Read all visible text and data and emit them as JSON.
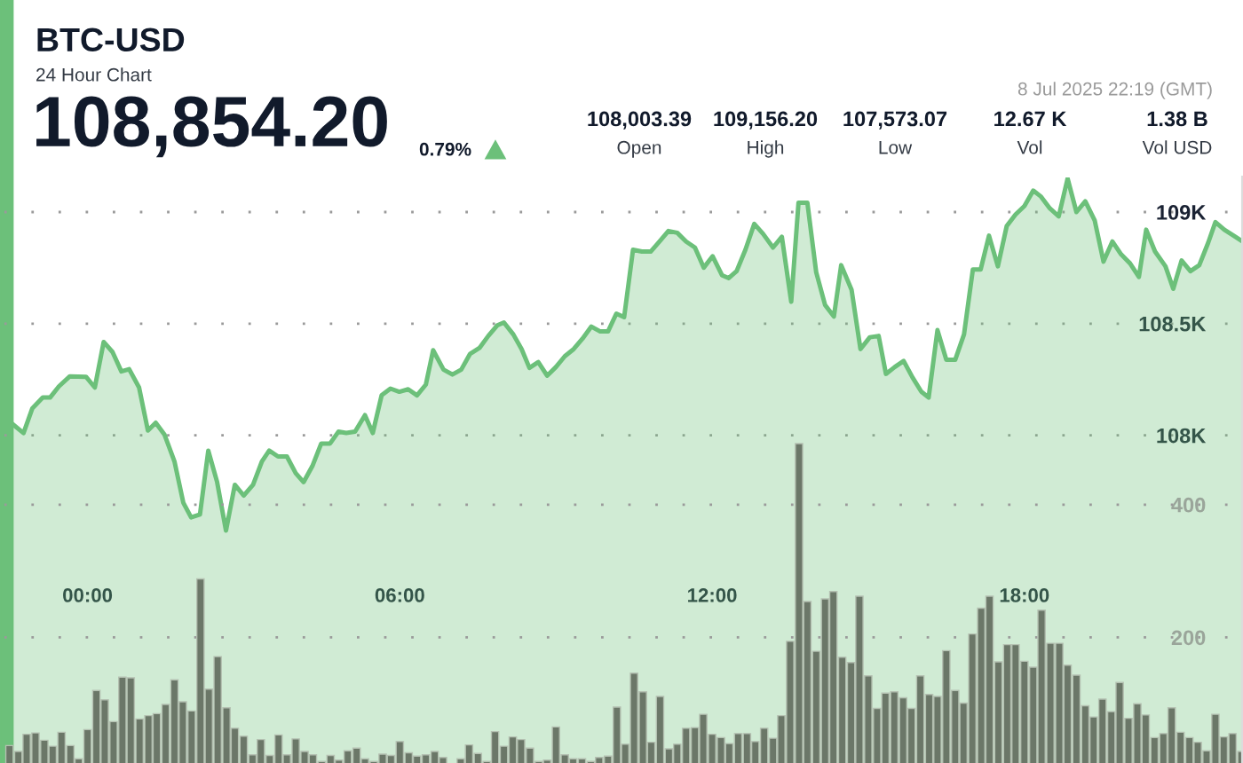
{
  "chart_data": {
    "type": "area",
    "title": "BTC-USD",
    "subtitle": "24 Hour Chart",
    "annotations": [
      "108,854.20",
      "0.79%",
      "108,003.39",
      "Open",
      "109,156.20",
      "High",
      "107,573.07",
      "Low",
      "12.67 K",
      "Vol",
      "1.38 B",
      "Vol USD",
      "8 Jul 2025 22:19 (GMT)"
    ],
    "xlim": [
      -1.6,
      22.2
    ],
    "xticks": [
      {
        "value": 0,
        "label": "00:00"
      },
      {
        "value": 6,
        "label": "06:00"
      },
      {
        "value": 12,
        "label": "12:00"
      },
      {
        "value": 18,
        "label": "18:00"
      }
    ],
    "ylim": [
      106500,
      109155
    ],
    "yticks": [
      {
        "value": 108000,
        "label": "108K"
      },
      {
        "value": 108500,
        "label": "108.5K"
      },
      {
        "value": 109000,
        "label": "109K"
      }
    ],
    "y2lim": [
      0,
      893
    ],
    "y2ticks": [
      200,
      400
    ],
    "grid": "y",
    "marker": "none",
    "series": [
      {
        "color": "#6cc07a",
        "x": [
          -1.43,
          -1.23,
          -1.06,
          -0.86,
          -0.72,
          -0.55,
          -0.34,
          -0.03,
          0.14,
          0.31,
          0.48,
          0.65,
          0.8,
          0.99,
          1.16,
          1.31,
          1.48,
          1.67,
          1.84,
          1.99,
          2.16,
          2.32,
          2.49,
          2.66,
          2.83,
          3.0,
          3.18,
          3.35,
          3.49,
          3.66,
          3.83,
          4.0,
          4.15,
          4.32,
          4.49,
          4.66,
          4.82,
          4.97,
          5.14,
          5.33,
          5.48,
          5.65,
          5.82,
          5.99,
          6.16,
          6.33,
          6.5,
          6.64,
          6.84,
          7.01,
          7.18,
          7.35,
          7.53,
          7.7,
          7.87,
          8.0,
          8.18,
          8.34,
          8.49,
          8.66,
          8.83,
          9.0,
          9.17,
          9.34,
          9.51,
          9.68,
          9.85,
          10.0,
          10.16,
          10.31,
          10.48,
          10.65,
          10.82,
          10.99,
          11.16,
          11.33,
          11.5,
          11.67,
          11.84,
          12.01,
          12.19,
          12.32,
          12.47,
          12.64,
          12.81,
          12.98,
          13.17,
          13.34,
          13.52,
          13.66,
          13.83,
          14.0,
          14.17,
          14.34,
          14.48,
          14.68,
          14.85,
          15.03,
          15.2,
          15.34,
          15.51,
          15.68,
          15.85,
          16.02,
          16.16,
          16.33,
          16.5,
          16.67,
          16.84,
          17.01,
          17.16,
          17.32,
          17.49,
          17.66,
          17.83,
          18.0,
          18.17,
          18.32,
          18.49,
          18.66,
          18.83,
          19.0,
          19.17,
          19.35,
          19.52,
          19.69,
          19.86,
          20.03,
          20.2,
          20.34,
          20.51,
          20.71,
          20.86,
          21.02,
          21.19,
          21.36,
          21.53,
          21.67,
          21.84,
          22.02,
          22.19
        ],
        "values": [
          108048,
          108010,
          108121,
          108169,
          108169,
          108219,
          108264,
          108262,
          108214,
          108418,
          108373,
          108286,
          108296,
          108214,
          108021,
          108056,
          108002,
          107883,
          107698,
          107632,
          107645,
          107931,
          107790,
          107573,
          107778,
          107730,
          107778,
          107883,
          107931,
          107905,
          107905,
          107830,
          107790,
          107862,
          107963,
          107963,
          108016,
          108010,
          108016,
          108090,
          108010,
          108179,
          108209,
          108195,
          108206,
          108179,
          108227,
          108381,
          108294,
          108272,
          108294,
          108365,
          108391,
          108445,
          108492,
          108505,
          108452,
          108386,
          108302,
          108328,
          108267,
          108306,
          108354,
          108386,
          108433,
          108487,
          108465,
          108465,
          108545,
          108529,
          108831,
          108823,
          108823,
          108868,
          108915,
          108907,
          108868,
          108841,
          108751,
          108802,
          108717,
          108704,
          108735,
          108831,
          108947,
          108902,
          108841,
          108889,
          108598,
          109042,
          109042,
          108730,
          108584,
          108532,
          108762,
          108651,
          108386,
          108439,
          108445,
          108275,
          108306,
          108333,
          108259,
          108195,
          108169,
          108471,
          108338,
          108338,
          108452,
          108743,
          108743,
          108894,
          108757,
          108937,
          108989,
          109027,
          109096,
          109069,
          109016,
          108981,
          109150,
          109000,
          109048,
          108963,
          108778,
          108868,
          108810,
          108770,
          108709,
          108921,
          108823,
          108757,
          108656,
          108783,
          108735,
          108762,
          108862,
          108955,
          108921,
          108894,
          108868
        ]
      },
      {
        "type": "bar",
        "axis": "y2",
        "color": "#6b7768",
        "x": [
          -1.5,
          -1.33,
          -1.17,
          -1,
          -0.83,
          -0.67,
          -0.5,
          -0.33,
          -0.17,
          0,
          0.17,
          0.33,
          0.5,
          0.67,
          0.83,
          1,
          1.17,
          1.33,
          1.5,
          1.67,
          1.83,
          2,
          2.17,
          2.33,
          2.5,
          2.67,
          2.83,
          3,
          3.17,
          3.33,
          3.5,
          3.67,
          3.83,
          4,
          4.17,
          4.33,
          4.5,
          4.67,
          4.83,
          5,
          5.17,
          5.33,
          5.5,
          5.67,
          5.83,
          6,
          6.17,
          6.33,
          6.5,
          6.67,
          6.83,
          7,
          7.17,
          7.33,
          7.5,
          7.67,
          7.83,
          8,
          8.17,
          8.33,
          8.5,
          8.67,
          8.83,
          9,
          9.17,
          9.33,
          9.5,
          9.67,
          9.83,
          10,
          10.17,
          10.33,
          10.5,
          10.67,
          10.83,
          11,
          11.17,
          11.33,
          11.5,
          11.67,
          11.83,
          12,
          12.17,
          12.33,
          12.5,
          12.67,
          12.83,
          13,
          13.17,
          13.33,
          13.5,
          13.67,
          13.83,
          14,
          14.17,
          14.33,
          14.5,
          14.67,
          14.83,
          15,
          15.17,
          15.33,
          15.5,
          15.67,
          15.83,
          16,
          16.17,
          16.33,
          16.5,
          16.67,
          16.83,
          17,
          17.17,
          17.33,
          17.5,
          17.67,
          17.83,
          18,
          18.17,
          18.33,
          18.5,
          18.67,
          18.83,
          19,
          19.17,
          19.33,
          19.5,
          19.67,
          19.83,
          20,
          20.17,
          20.33,
          20.5,
          20.67,
          20.83,
          21,
          21.17,
          21.33,
          21.5,
          21.67,
          21.83,
          22,
          22.17
        ],
        "values": [
          37,
          28,
          54,
          56,
          45,
          36,
          57,
          37,
          17,
          61,
          120,
          106,
          73,
          140,
          139,
          77,
          82,
          85,
          99,
          136,
          103,
          89,
          288,
          122,
          171,
          94,
          63,
          51,
          23,
          46,
          22,
          53,
          23,
          47,
          28,
          23,
          13,
          22,
          15,
          29,
          33,
          17,
          13,
          24,
          22,
          43,
          26,
          21,
          23,
          28,
          19,
          null,
          17,
          38,
          25,
          13,
          58,
          36,
          50,
          46,
          33,
          13,
          15,
          65,
          23,
          17,
          17,
          13,
          19,
          21,
          95,
          39,
          146,
          118,
          42,
          111,
          32,
          39,
          63,
          64,
          84,
          54,
          49,
          40,
          55,
          55,
          43,
          63,
          48,
          82,
          194,
          492,
          254,
          179,
          258,
          269,
          170,
          162,
          262,
          142,
          93,
          116,
          118,
          109,
          93,
          142,
          114,
          111,
          180,
          120,
          101,
          205,
          244,
          262,
          163,
          189,
          189,
          164,
          155,
          241,
          191,
          191,
          158,
          143,
          97,
          80,
          107,
          88,
          132,
          78,
          100,
          83,
          49,
          55,
          94,
          57,
          49,
          42,
          29,
          84,
          50,
          55,
          28
        ]
      }
    ]
  }
}
